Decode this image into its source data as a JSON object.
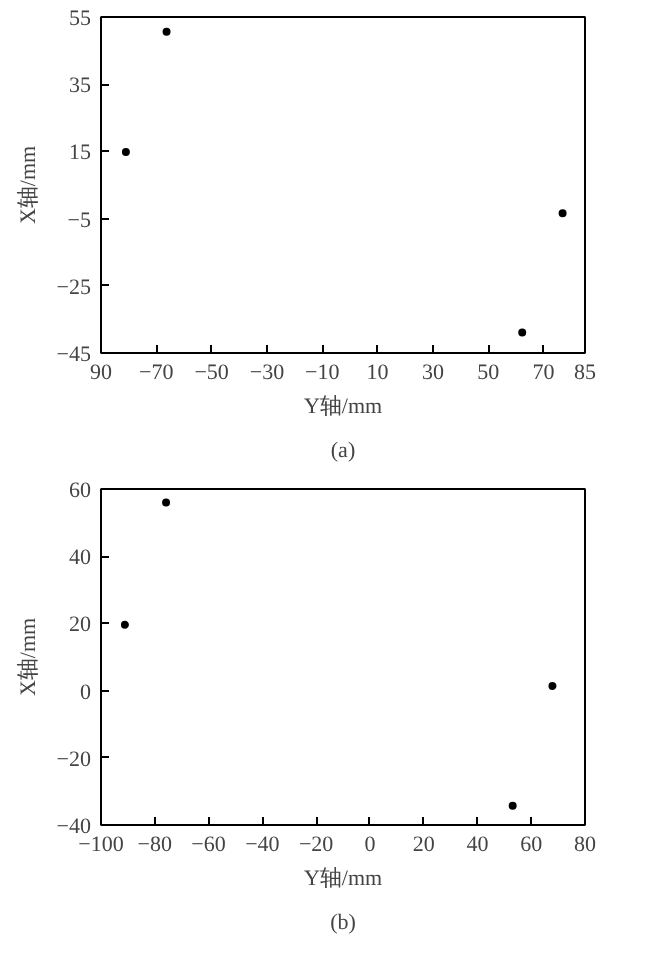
{
  "chart_data": [
    {
      "type": "scatter",
      "xlabel": "Y轴/mm",
      "ylabel": "X轴/mm",
      "annotations": [
        "(a)"
      ],
      "marker": "circle",
      "grid": false,
      "x": [
        -81,
        -66.3,
        76.9,
        62.3
      ],
      "series": [
        {
          "color": "#000000",
          "values": [
            14.8,
            50.6,
            -3.4,
            -38.9
          ]
        }
      ],
      "xlim": [
        -90,
        85
      ],
      "xticks": [
        {
          "value": -90,
          "label": "90"
        },
        -70,
        -50,
        -30,
        -10,
        10,
        30,
        50,
        70,
        85
      ],
      "ylim": [
        -45,
        55
      ],
      "yticks": [
        -45,
        -25,
        -5,
        15,
        35,
        55
      ]
    },
    {
      "type": "scatter",
      "xlabel": "Y轴/mm",
      "ylabel": "X轴/mm",
      "annotations": [
        "(b)"
      ],
      "marker": "circle",
      "grid": false,
      "x": [
        -91.1,
        -75.8,
        67.9,
        53.1
      ],
      "series": [
        {
          "color": "#000000",
          "values": [
            19.6,
            56,
            1.4,
            -34.3
          ]
        }
      ],
      "xlim": [
        -100,
        80
      ],
      "xticks": [
        -100,
        -80,
        -60,
        -40,
        -20,
        0,
        20,
        40,
        60,
        80
      ],
      "ylim": [
        -40,
        60
      ],
      "yticks": [
        -40,
        -20,
        0,
        20,
        40,
        60
      ]
    }
  ]
}
